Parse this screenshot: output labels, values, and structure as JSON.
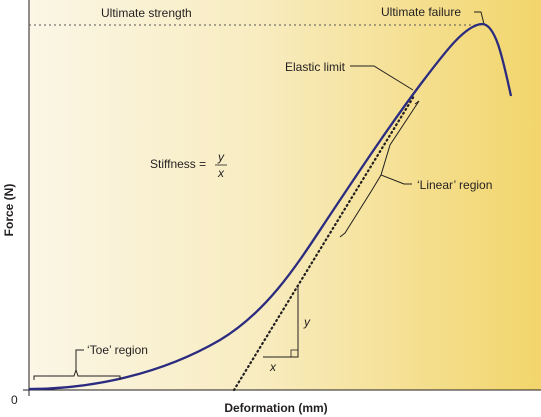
{
  "chart_data": {
    "type": "line",
    "xlabel": "Deformation (mm)",
    "ylabel": "Force (N)",
    "origin_label": "0",
    "annotations": {
      "ultimate_strength": "Ultimate strength",
      "ultimate_failure": "Ultimate failure",
      "elastic_limit": "Elastic limit",
      "linear_region": "‘Linear’ region",
      "toe_region": "‘Toe’ region",
      "stiffness_prefix": "Stiffness =",
      "stiffness_num": "y",
      "stiffness_den": "x",
      "y_delta": "y",
      "x_delta": "x"
    },
    "grid": false,
    "colors": {
      "curve": "#2b2b7f",
      "background_left": "#fbf6e6",
      "background_right": "#f2d56b",
      "dotted_lines": "#444444",
      "text": "#231f20"
    }
  }
}
